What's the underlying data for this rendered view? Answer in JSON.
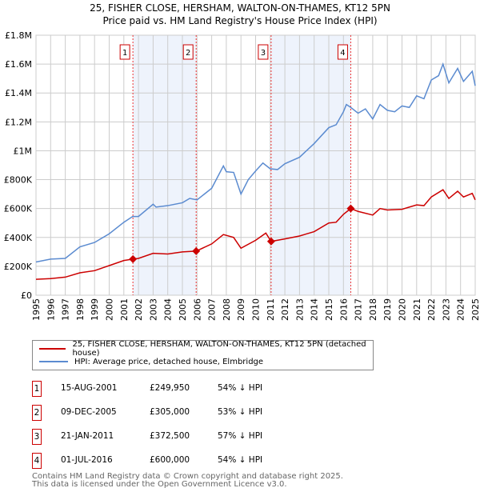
{
  "chart_data": {
    "type": "line",
    "title": "25, FISHER CLOSE, HERSHAM, WALTON-ON-THAMES, KT12 5PN",
    "subtitle": "Price paid vs. HM Land Registry's House Price Index (HPI)",
    "xlim": [
      1995,
      2025
    ],
    "ylim": [
      0,
      1800000
    ],
    "grid": true,
    "x_ticks": [
      "1995",
      "1996",
      "1997",
      "1998",
      "1999",
      "2000",
      "2001",
      "2002",
      "2003",
      "2004",
      "2005",
      "2006",
      "2007",
      "2008",
      "2009",
      "2010",
      "2011",
      "2012",
      "2013",
      "2014",
      "2015",
      "2016",
      "2017",
      "2018",
      "2019",
      "2020",
      "2021",
      "2022",
      "2023",
      "2024",
      "2025"
    ],
    "y_ticks": [
      {
        "v": 0,
        "l": "£0"
      },
      {
        "v": 200000,
        "l": "£200K"
      },
      {
        "v": 400000,
        "l": "£400K"
      },
      {
        "v": 600000,
        "l": "£600K"
      },
      {
        "v": 800000,
        "l": "£800K"
      },
      {
        "v": 1000000,
        "l": "£1M"
      },
      {
        "v": 1200000,
        "l": "£1.2M"
      },
      {
        "v": 1400000,
        "l": "£1.4M"
      },
      {
        "v": 1600000,
        "l": "£1.6M"
      },
      {
        "v": 1800000,
        "l": "£1.8M"
      }
    ],
    "series": [
      {
        "name": "25, FISHER CLOSE, HERSHAM, WALTON-ON-THAMES, KT12 5PN (detached house)",
        "color": "#cc0000",
        "x": [
          1995,
          1996,
          1997,
          1998,
          1999,
          2000,
          2001,
          2001.62,
          2002,
          2003,
          2004,
          2005,
          2005.94,
          2007,
          2007.8,
          2008.5,
          2009,
          2010,
          2010.7,
          2011.06,
          2012,
          2013,
          2014,
          2015,
          2015.5,
          2016,
          2016.5,
          2017,
          2018,
          2018.5,
          2019,
          2020,
          2021,
          2021.5,
          2022,
          2022.8,
          2023.2,
          2023.8,
          2024.2,
          2024.8,
          2025
        ],
        "y": [
          110000,
          115000,
          125000,
          155000,
          170000,
          205000,
          240000,
          249950,
          255000,
          290000,
          285000,
          300000,
          305000,
          355000,
          420000,
          400000,
          325000,
          380000,
          430000,
          372500,
          390000,
          410000,
          440000,
          500000,
          505000,
          560000,
          600000,
          580000,
          555000,
          600000,
          590000,
          595000,
          625000,
          620000,
          680000,
          730000,
          670000,
          720000,
          680000,
          705000,
          660000
        ]
      },
      {
        "name": "HPI: Average price, detached house, Elmbridge",
        "color": "#5b8bd0",
        "x": [
          1995,
          1996,
          1997,
          1998,
          1999,
          2000,
          2001,
          2001.6,
          2002,
          2003,
          2003.2,
          2004,
          2005,
          2005.5,
          2006,
          2007,
          2007.8,
          2008,
          2008.5,
          2009,
          2009.5,
          2010,
          2010.5,
          2011,
          2011.5,
          2012,
          2013,
          2014,
          2015,
          2015.5,
          2016,
          2016.2,
          2016.5,
          2017,
          2017.5,
          2018,
          2018.5,
          2019,
          2019.5,
          2020,
          2020.5,
          2021,
          2021.5,
          2022,
          2022.5,
          2022.8,
          2023.2,
          2023.8,
          2024.2,
          2024.8,
          2025
        ],
        "y": [
          230000,
          250000,
          255000,
          335000,
          365000,
          425000,
          505000,
          545000,
          545000,
          630000,
          610000,
          620000,
          640000,
          670000,
          660000,
          740000,
          895000,
          855000,
          850000,
          700000,
          800000,
          860000,
          915000,
          875000,
          870000,
          910000,
          955000,
          1050000,
          1160000,
          1180000,
          1270000,
          1320000,
          1300000,
          1260000,
          1290000,
          1220000,
          1320000,
          1280000,
          1270000,
          1310000,
          1300000,
          1380000,
          1360000,
          1490000,
          1520000,
          1600000,
          1470000,
          1570000,
          1480000,
          1550000,
          1450000
        ]
      }
    ],
    "sales": [
      {
        "n": "1",
        "x": 2001.62,
        "y": 249950,
        "date": "15-AUG-2001",
        "price": "£249,950",
        "hpi": "54% ↓ HPI"
      },
      {
        "n": "2",
        "x": 2005.94,
        "y": 305000,
        "date": "09-DEC-2005",
        "price": "£305,000",
        "hpi": "53% ↓ HPI"
      },
      {
        "n": "3",
        "x": 2011.06,
        "y": 372500,
        "date": "21-JAN-2011",
        "price": "£372,500",
        "hpi": "57% ↓ HPI"
      },
      {
        "n": "4",
        "x": 2016.5,
        "y": 600000,
        "date": "01-JUL-2016",
        "price": "£600,000",
        "hpi": "54% ↓ HPI"
      }
    ],
    "shaded_ranges": [
      [
        2001.62,
        2005.94
      ],
      [
        2011.06,
        2016.5
      ]
    ],
    "legend_placement": "bottom"
  },
  "footer": [
    "Contains HM Land Registry data © Crown copyright and database right 2025.",
    "This data is licensed under the Open Government Licence v3.0."
  ]
}
